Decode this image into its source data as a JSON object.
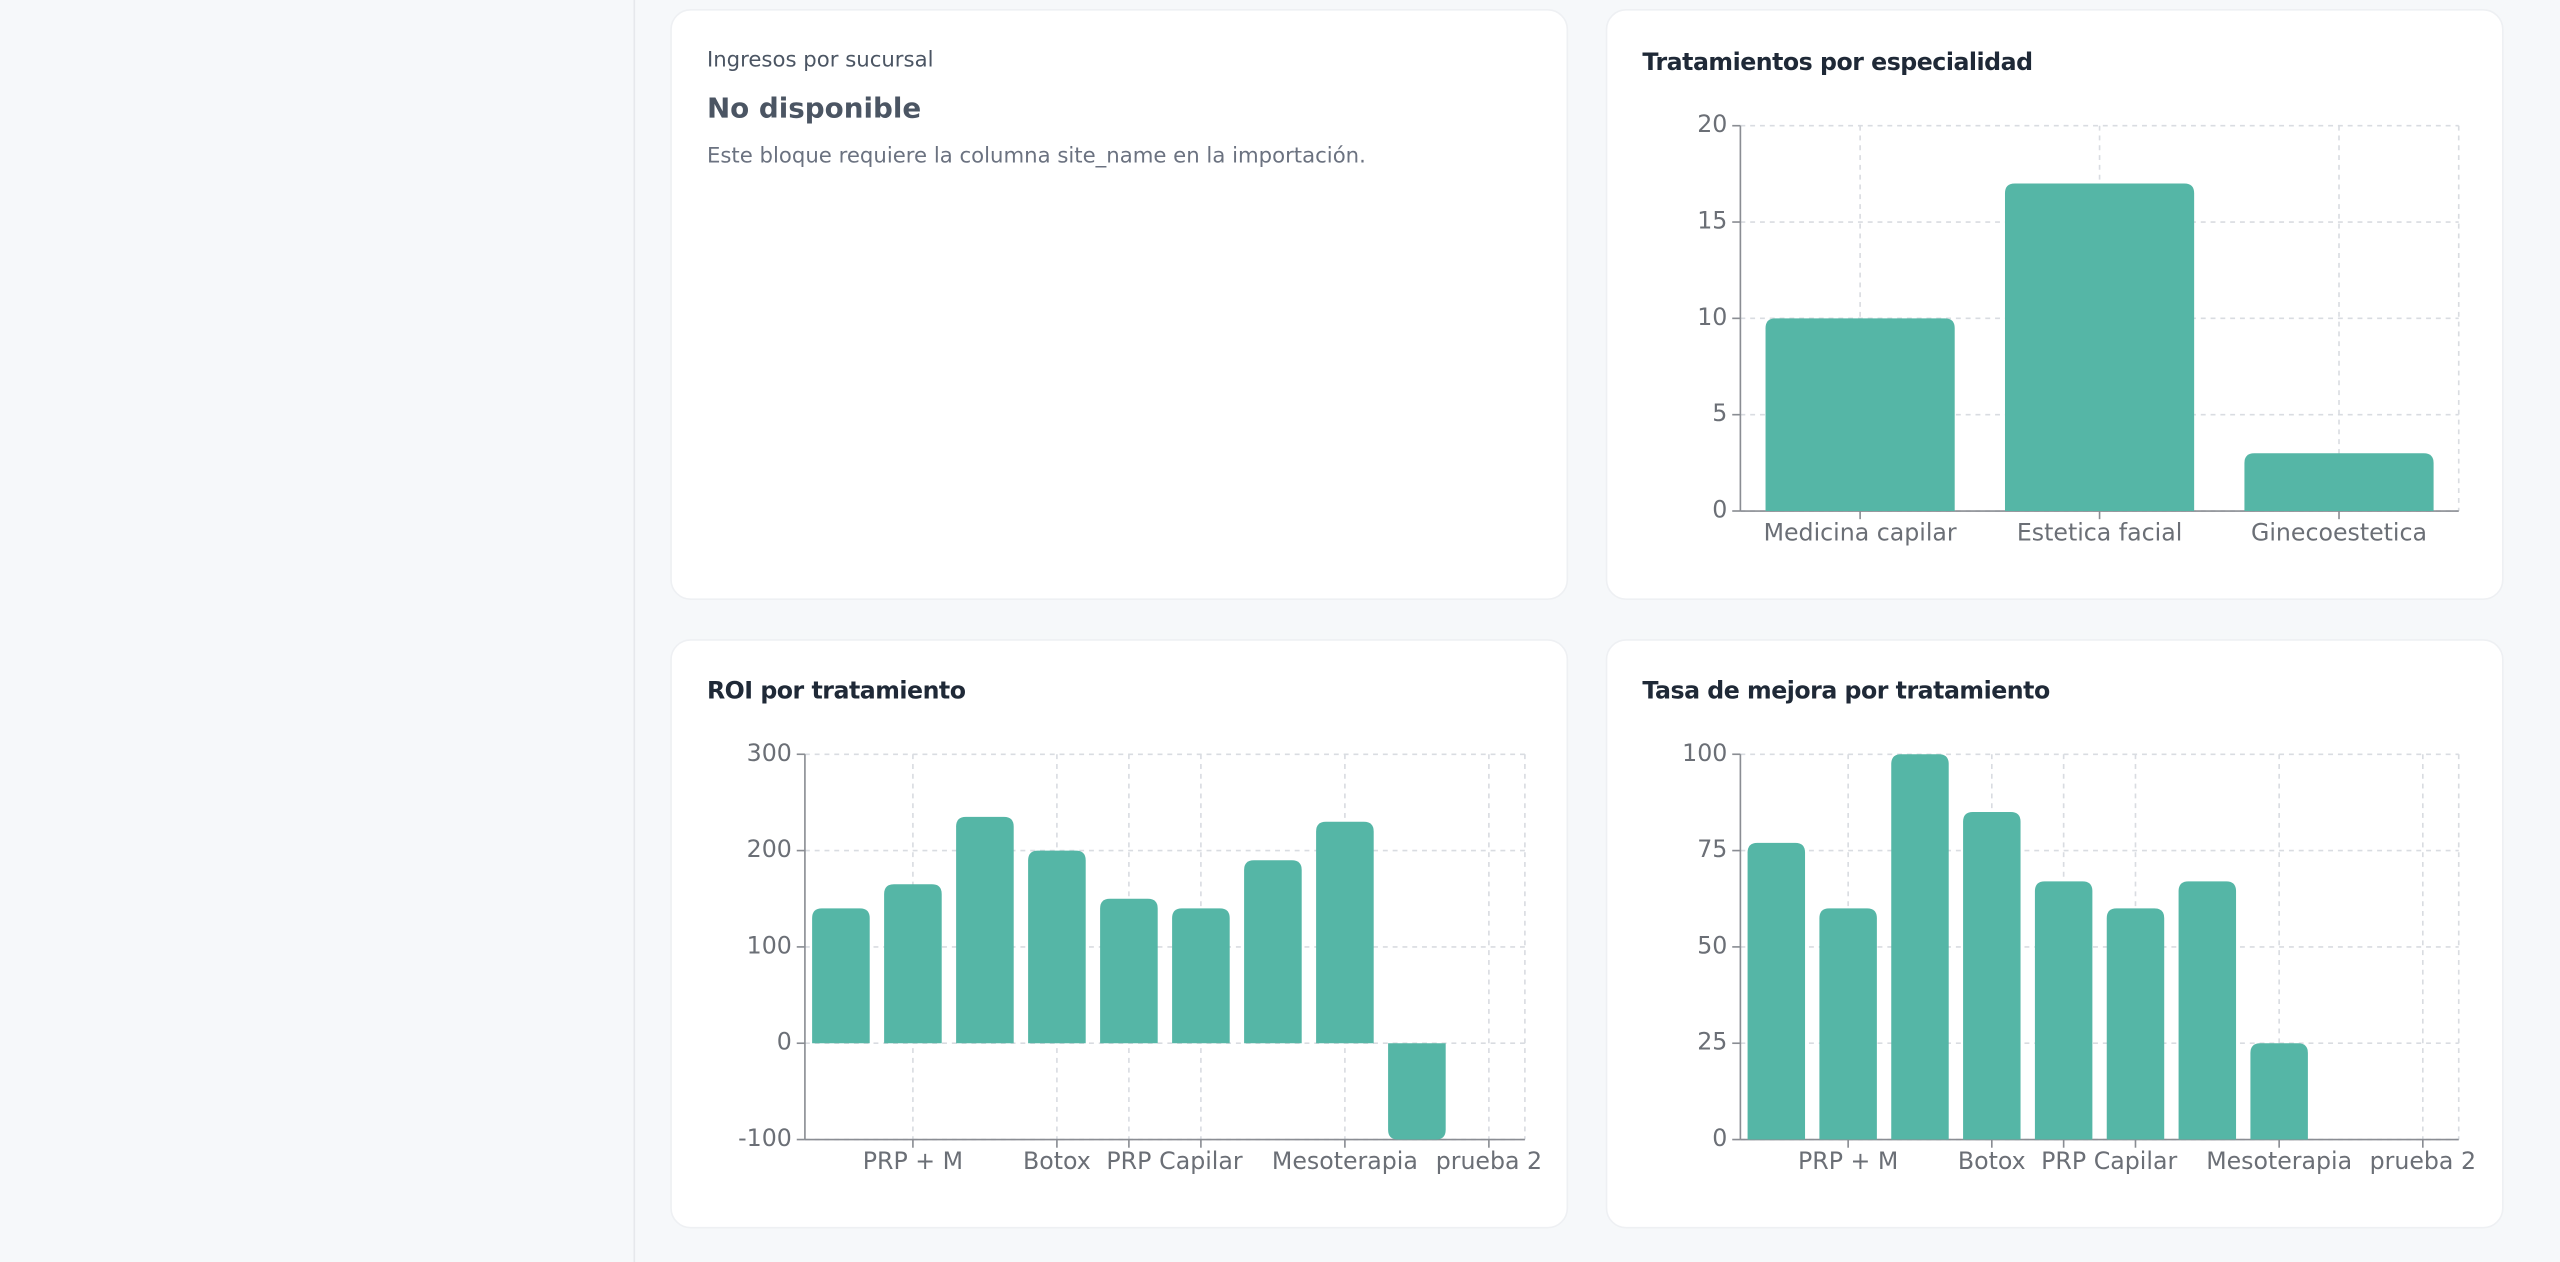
{
  "unavailable_card": {
    "title": "Ingresos por sucursal",
    "heading": "No disponible",
    "message": "Este bloque requiere la columna site_name en la importación."
  },
  "chart_data": [
    {
      "type": "bar",
      "title": "Tratamientos por especialidad",
      "categories": [
        "Medicina capilar",
        "Estetica facial",
        "Ginecoestetica"
      ],
      "values": [
        10,
        17,
        3
      ],
      "color": "#55b6a6",
      "ylim": [
        0,
        20
      ],
      "yticks": [
        0,
        5,
        10,
        15,
        20
      ],
      "grid": true
    },
    {
      "type": "bar",
      "title": "ROI por tratamiento",
      "categories": [
        null,
        "PRP + M",
        null,
        "Botox",
        "PRP",
        "Capilar",
        null,
        "Mesoterapia",
        null,
        "prueba 2"
      ],
      "values": [
        140,
        165,
        235,
        200,
        150,
        140,
        190,
        230,
        -100,
        0
      ],
      "color": "#55b6a6",
      "ylim": [
        -100,
        300
      ],
      "yticks": [
        -100,
        0,
        100,
        200,
        300
      ],
      "grid": true
    },
    {
      "type": "bar",
      "title": "Tasa de mejora por tratamiento",
      "categories": [
        null,
        "PRP + M",
        null,
        "Botox",
        "PRP",
        "Capilar",
        null,
        "Mesoterapia",
        null,
        "prueba 2"
      ],
      "values": [
        77,
        60,
        100,
        85,
        67,
        60,
        67,
        25,
        0,
        0
      ],
      "color": "#55b6a6",
      "ylim": [
        0,
        100
      ],
      "yticks": [
        0,
        25,
        50,
        75,
        100
      ],
      "grid": true
    }
  ]
}
